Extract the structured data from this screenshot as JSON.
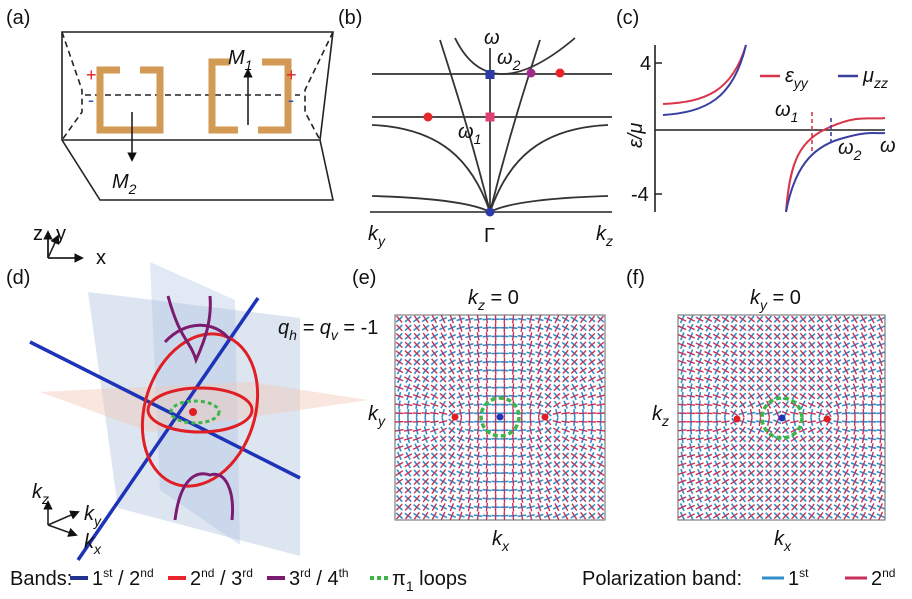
{
  "panels": {
    "a": {
      "label": "(a)",
      "m1": {
        "base": "M",
        "sub": "1"
      },
      "m2": {
        "base": "M",
        "sub": "2"
      },
      "plus_left": "+",
      "plus_right": "+",
      "minus_left": "-",
      "minus_right": "-",
      "axes": {
        "z": "z",
        "y": "y",
        "x": "x"
      }
    },
    "b": {
      "label": "(b)",
      "omega": "ω",
      "omega2": {
        "base": "ω",
        "sub": "2"
      },
      "omega1": {
        "base": "ω",
        "sub": "1"
      },
      "ky": {
        "base": "k",
        "sub": "y"
      },
      "gamma": "Γ",
      "kz": {
        "base": "k",
        "sub": "z"
      }
    },
    "c": {
      "label": "(c)",
      "tick_top": "4",
      "tick_bottom": "-4",
      "ylabel": "ε/μ",
      "omega1": {
        "base": "ω",
        "sub": "1"
      },
      "omega2": {
        "base": "ω",
        "sub": "2"
      },
      "omega": "ω",
      "legend": [
        {
          "base": "ε",
          "sub": "yy",
          "color": "#d8344a"
        },
        {
          "base": "μ",
          "sub": "zz",
          "color": "#3a3fa0"
        }
      ]
    },
    "d": {
      "label": "(d)",
      "charge": {
        "q1": "q",
        "s1": "h",
        "mid": " = q",
        "s2": "v",
        "end": " = -1"
      },
      "kz": {
        "base": "k",
        "sub": "z"
      },
      "ky": {
        "base": "k",
        "sub": "y"
      },
      "kx": {
        "base": "k",
        "sub": "x"
      }
    },
    "e": {
      "label": "(e)",
      "slice": {
        "base": "k",
        "sub": "z",
        "rest": " = 0"
      },
      "ky": {
        "base": "k",
        "sub": "y"
      },
      "kx": {
        "base": "k",
        "sub": "x"
      }
    },
    "f": {
      "label": "(f)",
      "slice": {
        "base": "k",
        "sub": "y",
        "rest": " = 0"
      },
      "kz": {
        "base": "k",
        "sub": "z"
      },
      "kx": {
        "base": "k",
        "sub": "x"
      }
    }
  },
  "legend_bands": {
    "title": "Bands:",
    "items": [
      {
        "n1": "1",
        "s1": "st",
        "mid": " / 2",
        "s2": "nd",
        "color": "#24338f"
      },
      {
        "n1": "2",
        "s1": "nd",
        "mid": " / 3",
        "s2": "rd",
        "color": "#e8262a"
      },
      {
        "n1": "3",
        "s1": "rd",
        "mid": " / 4",
        "s2": "th",
        "color": "#7b1c6e"
      },
      {
        "n1": "π",
        "s1": "1",
        "mid": " loops",
        "color": "#3cb648"
      }
    ]
  },
  "legend_polarization": {
    "title": "Polarization band:",
    "items": [
      {
        "n1": "1",
        "s1": "st",
        "color": "#2f8fc8"
      },
      {
        "n1": "2",
        "s1": "nd",
        "color": "#c8305a"
      }
    ]
  }
}
